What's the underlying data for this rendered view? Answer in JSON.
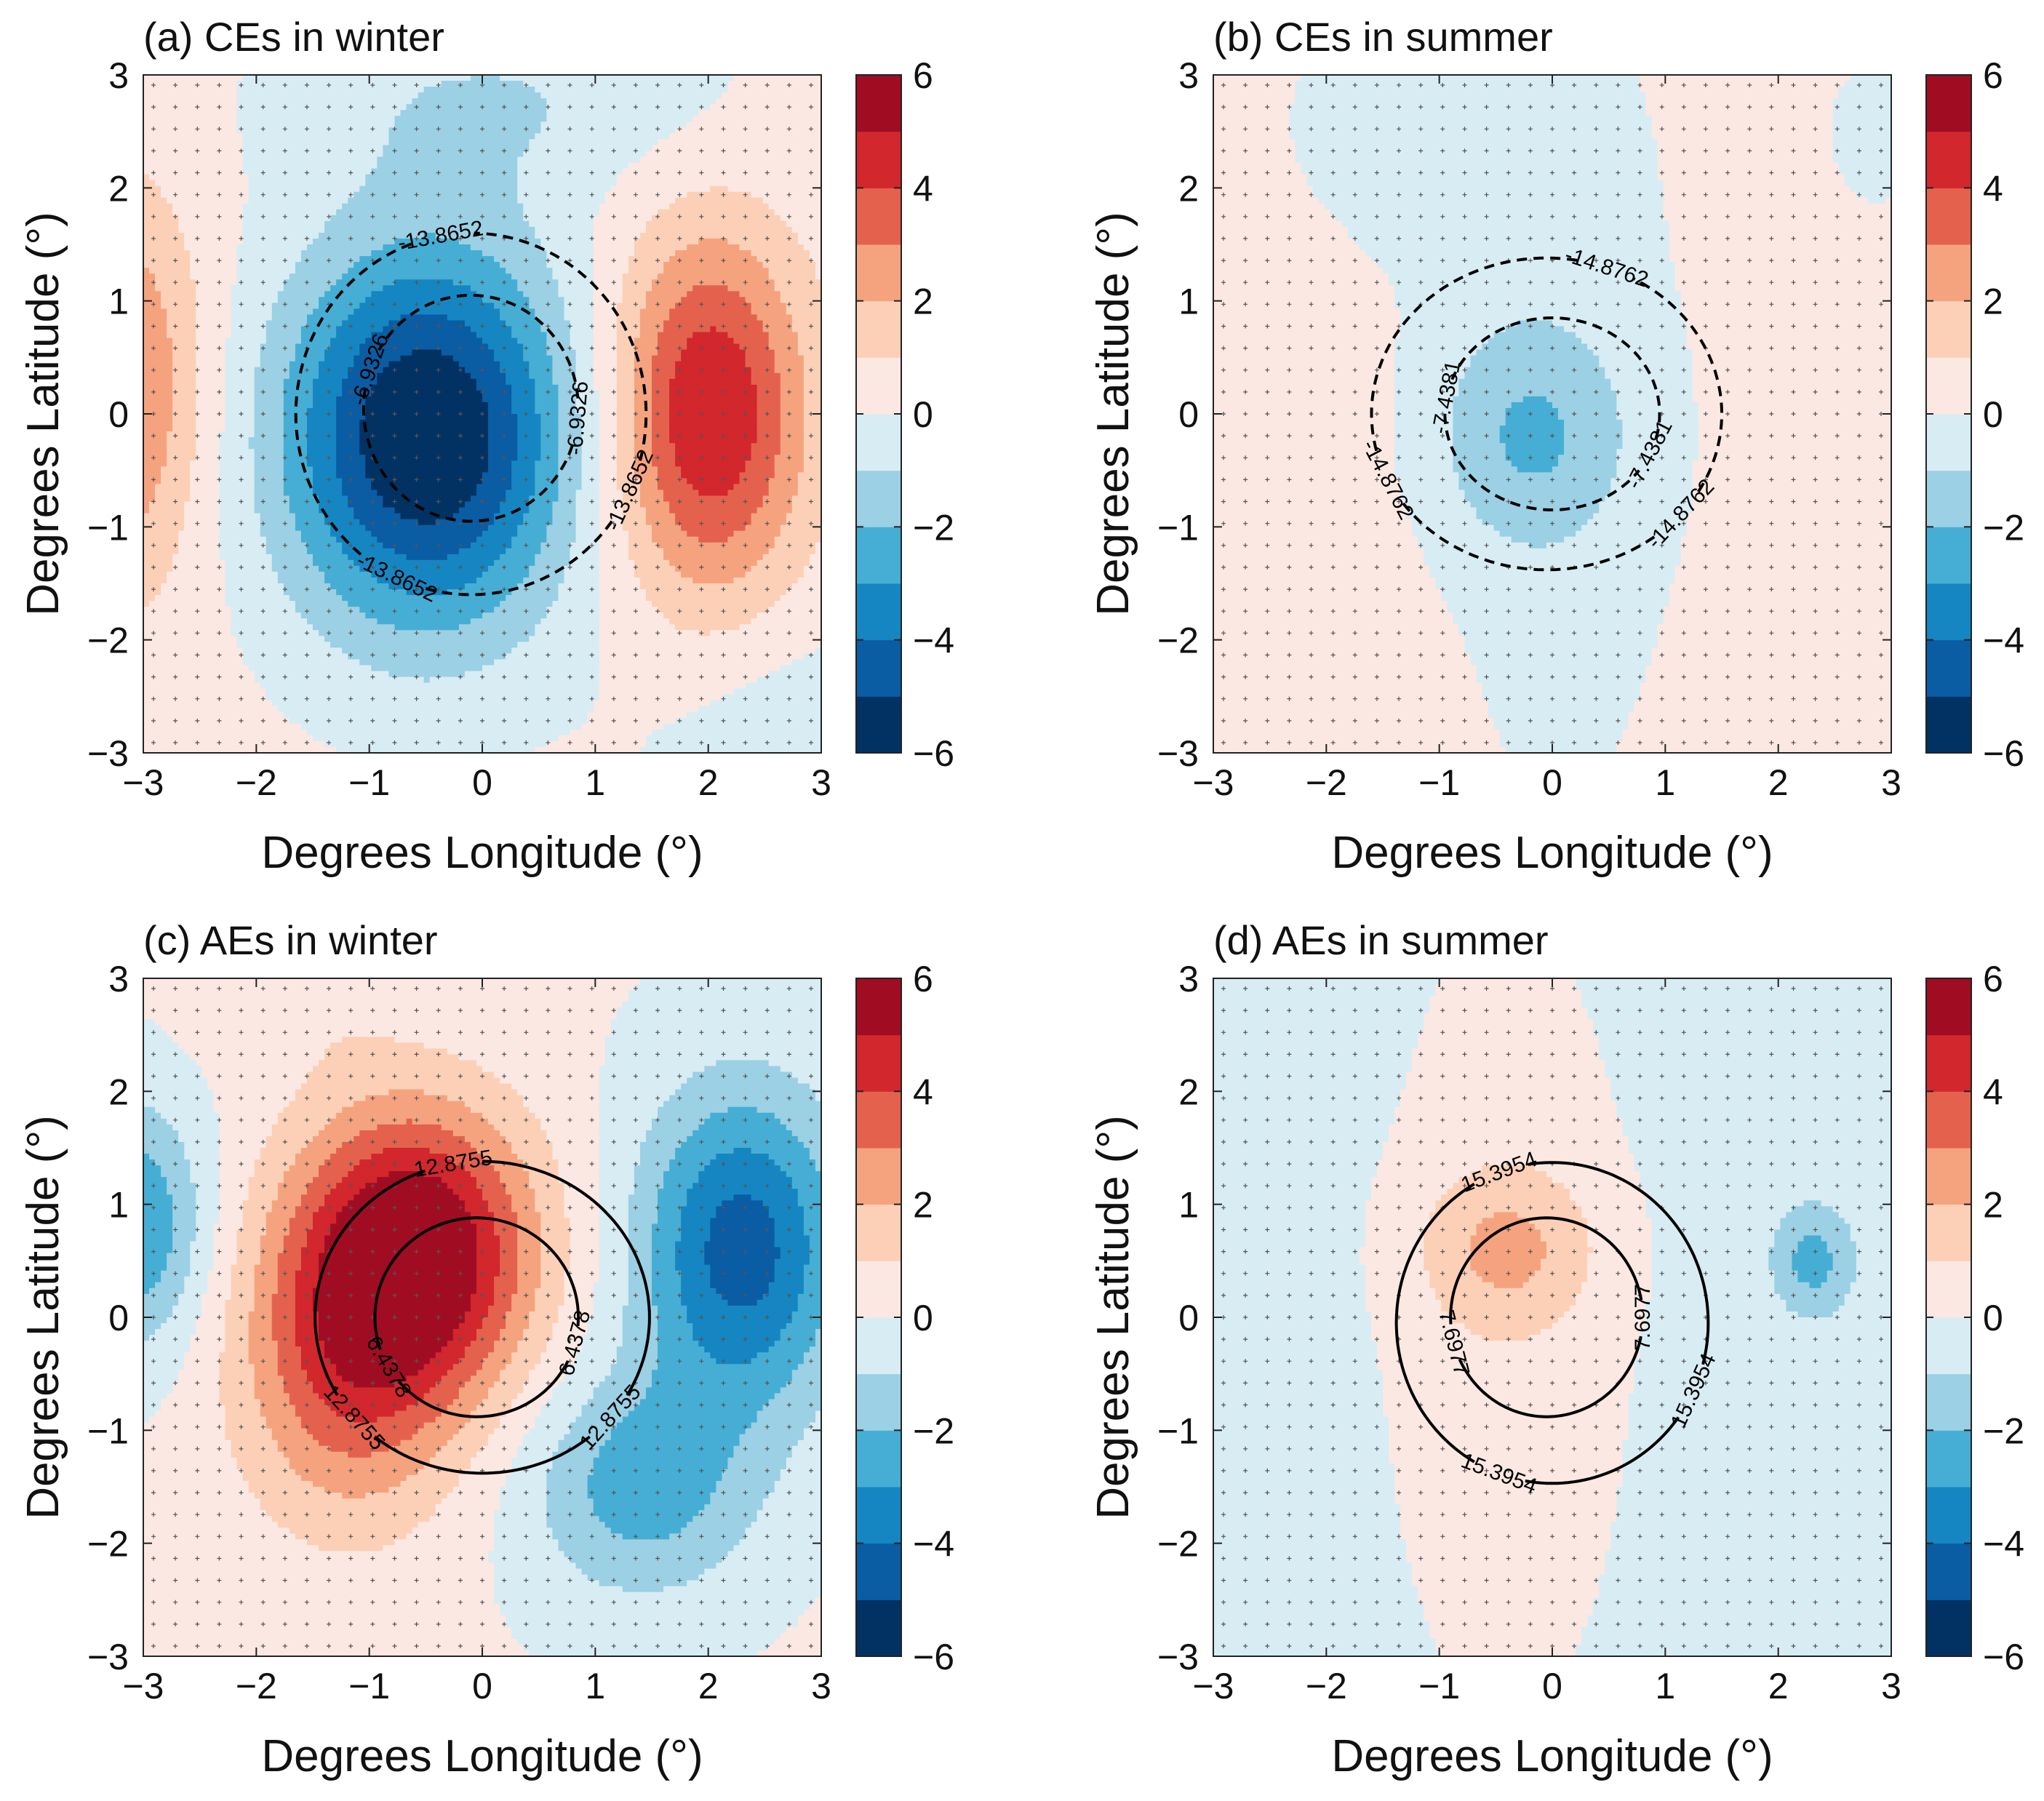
{
  "chart_data": [
    {
      "type": "filled-contour",
      "id": "a",
      "title": "(a) CEs in winter",
      "xlabel": "Degrees Longitude (°)",
      "ylabel": "Degrees Latitude (°)",
      "xlim": [
        -3,
        3
      ],
      "ylim": [
        -3,
        3
      ],
      "xticks": [
        "−3",
        "−2",
        "−1",
        "0",
        "1",
        "2",
        "3"
      ],
      "yticks": [
        "−3",
        "−2",
        "−1",
        "0",
        "1",
        "2",
        "3"
      ],
      "field": {
        "blobs": [
          {
            "x": -0.5,
            "y": -0.2,
            "amp": -6.5,
            "sx": 0.9,
            "sy": 1.2
          },
          {
            "x": 2.0,
            "y": 0.0,
            "amp": 4.8,
            "sx": 0.6,
            "sy": 1.1
          },
          {
            "x": -3.2,
            "y": 0.2,
            "amp": 3.0,
            "sx": 0.5,
            "sy": 1.2
          },
          {
            "x": 0.2,
            "y": 2.8,
            "amp": -1.2,
            "sx": 1.4,
            "sy": 0.6
          },
          {
            "x": 2.9,
            "y": -2.9,
            "amp": -1.0,
            "sx": 1.0,
            "sy": 0.7
          }
        ],
        "base": 0.3
      },
      "contours": [
        {
          "value": "-13.8652",
          "cx": -0.1,
          "cy": 0.0,
          "rx": 1.55,
          "ry": 1.6,
          "dashed": true,
          "labels": [
            100,
            245,
            335
          ]
        },
        {
          "value": "-6.9326",
          "cx": -0.1,
          "cy": 0.05,
          "rx": 0.95,
          "ry": 1.0,
          "dashed": true,
          "labels": [
            160,
            355
          ]
        }
      ],
      "colorbar": {
        "ticks": [
          "6",
          "4",
          "2",
          "0",
          "−2",
          "−4",
          "−6"
        ]
      }
    },
    {
      "type": "filled-contour",
      "id": "b",
      "title": "(b) CEs in summer",
      "xlabel": "Degrees Longitude (°)",
      "ylabel": "Degrees Latitude (°)",
      "xlim": [
        -3,
        3
      ],
      "ylim": [
        -3,
        3
      ],
      "xticks": [
        "−3",
        "−2",
        "−1",
        "0",
        "1",
        "2",
        "3"
      ],
      "yticks": [
        "−3",
        "−2",
        "−1",
        "0",
        "1",
        "2",
        "3"
      ],
      "field": {
        "blobs": [
          {
            "x": -0.2,
            "y": -0.2,
            "amp": -1.9,
            "sx": 0.6,
            "sy": 0.7
          },
          {
            "x": 0.0,
            "y": 0.0,
            "amp": -0.9,
            "sx": 1.1,
            "sy": 3.5
          },
          {
            "x": 2.9,
            "y": 2.5,
            "amp": -0.9,
            "sx": 0.4,
            "sy": 0.6
          },
          {
            "x": -1.3,
            "y": 2.6,
            "amp": -0.9,
            "sx": 0.9,
            "sy": 0.8
          },
          {
            "x": -2.4,
            "y": -2.0,
            "amp": 0.3,
            "sx": 1.0,
            "sy": 1.5
          }
        ],
        "base": 0.55
      },
      "contours": [
        {
          "value": "-14.8762",
          "cx": -0.05,
          "cy": 0.0,
          "rx": 1.55,
          "ry": 1.38,
          "dashed": true,
          "labels": [
            70,
            205,
            320
          ]
        },
        {
          "value": "-7.4381",
          "cx": 0.0,
          "cy": 0.0,
          "rx": 0.95,
          "ry": 0.85,
          "dashed": true,
          "labels": [
            170,
            335
          ]
        }
      ],
      "colorbar": {
        "ticks": [
          "6",
          "4",
          "2",
          "0",
          "−2",
          "−4",
          "−6"
        ]
      }
    },
    {
      "type": "filled-contour",
      "id": "c",
      "title": "(c) AEs in winter",
      "xlabel": "Degrees Longitude (°)",
      "ylabel": "Degrees Latitude (°)",
      "xlim": [
        -3,
        3
      ],
      "ylim": [
        -3,
        3
      ],
      "xticks": [
        "−3",
        "−2",
        "−1",
        "0",
        "1",
        "2",
        "3"
      ],
      "yticks": [
        "−3",
        "−2",
        "−1",
        "0",
        "1",
        "2",
        "3"
      ],
      "field": {
        "blobs": [
          {
            "x": -0.6,
            "y": 0.6,
            "amp": 6.0,
            "sx": 0.75,
            "sy": 0.9
          },
          {
            "x": -1.2,
            "y": -0.5,
            "amp": 3.0,
            "sx": 0.7,
            "sy": 1.0
          },
          {
            "x": 2.3,
            "y": 0.6,
            "amp": -4.6,
            "sx": 0.65,
            "sy": 1.0
          },
          {
            "x": 1.4,
            "y": -1.5,
            "amp": -2.6,
            "sx": 0.7,
            "sy": 0.7
          },
          {
            "x": -3.1,
            "y": 0.8,
            "amp": -3.2,
            "sx": 0.45,
            "sy": 0.75
          },
          {
            "x": -1.6,
            "y": 3.0,
            "amp": 0.8,
            "sx": 0.6,
            "sy": 0.5
          }
        ],
        "base": 0.1
      },
      "contours": [
        {
          "value": "12.8755",
          "cx": 0.0,
          "cy": 0.0,
          "rx": 1.48,
          "ry": 1.38,
          "dashed": false,
          "labels": [
            100,
            220,
            320
          ]
        },
        {
          "value": "6.4378",
          "cx": -0.05,
          "cy": 0.0,
          "rx": 0.9,
          "ry": 0.88,
          "dashed": false,
          "labels": [
            210,
            345
          ]
        }
      ],
      "colorbar": {
        "ticks": [
          "6",
          "4",
          "2",
          "0",
          "−2",
          "−4",
          "−6"
        ]
      }
    },
    {
      "type": "filled-contour",
      "id": "d",
      "title": "(d) AEs in summer",
      "xlabel": "Degrees Longitude (°)",
      "ylabel": "Degrees Latitude (°)",
      "xlim": [
        -3,
        3
      ],
      "ylim": [
        -3,
        3
      ],
      "xticks": [
        "−3",
        "−2",
        "−1",
        "0",
        "1",
        "2",
        "3"
      ],
      "yticks": [
        "−3",
        "−2",
        "−1",
        "0",
        "1",
        "2",
        "3"
      ],
      "field": {
        "blobs": [
          {
            "x": -0.4,
            "y": 0.6,
            "amp": 1.9,
            "sx": 0.55,
            "sy": 0.5
          },
          {
            "x": -0.4,
            "y": 0.0,
            "amp": 1.1,
            "sx": 1.0,
            "sy": 3.2
          },
          {
            "x": 2.3,
            "y": 0.5,
            "amp": -1.9,
            "sx": 0.22,
            "sy": 0.3
          }
        ],
        "base": -0.6
      },
      "contours": [
        {
          "value": "15.3954",
          "cx": 0.0,
          "cy": -0.05,
          "rx": 1.38,
          "ry": 1.42,
          "dashed": false,
          "labels": [
            110,
            250,
            335
          ]
        },
        {
          "value": "7.6977",
          "cx": -0.05,
          "cy": 0.0,
          "rx": 0.85,
          "ry": 0.88,
          "dashed": false,
          "labels": [
            195,
            360
          ]
        }
      ],
      "colorbar": {
        "ticks": [
          "6",
          "4",
          "2",
          "0",
          "−2",
          "−4",
          "−6"
        ]
      }
    }
  ],
  "colorbar_colors": [
    "#023263",
    "#0a5ca3",
    "#1686c2",
    "#46aed4",
    "#9cd0e4",
    "#d8ecf4",
    "#fbe8e2",
    "#fcd0b7",
    "#f5a37f",
    "#e4624d",
    "#d1272d",
    "#a00d23"
  ]
}
